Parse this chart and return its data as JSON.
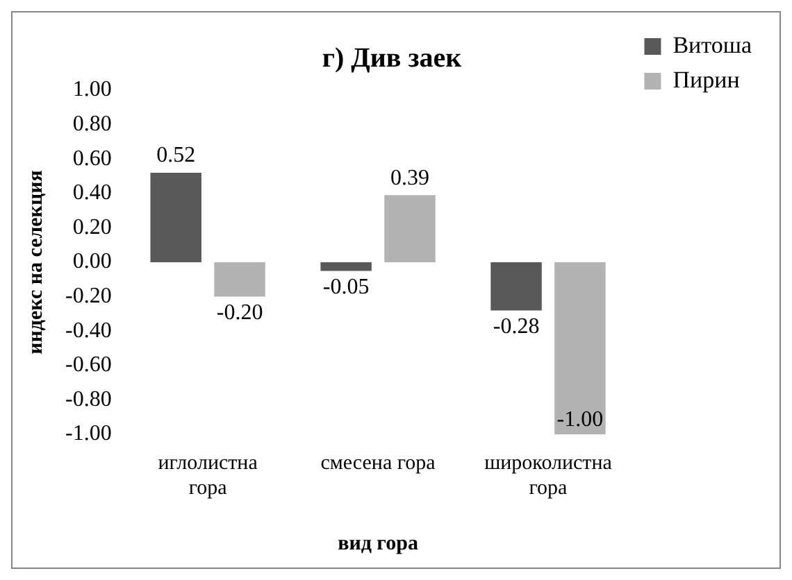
{
  "chart_data": {
    "type": "bar",
    "title": "г) Див заек",
    "xlabel": "вид гора",
    "ylabel": "индекс на селекция",
    "categories": [
      "иглолистна гора",
      "смесена гора",
      "широколистна гора"
    ],
    "series": [
      {
        "name": "Витоша",
        "color": "#595959",
        "values": [
          0.52,
          -0.05,
          -0.28
        ]
      },
      {
        "name": "Пирин",
        "color": "#b3b3b3",
        "values": [
          -0.2,
          0.39,
          -1.0
        ]
      }
    ],
    "value_labels": [
      [
        "0.52",
        "-0.05",
        "-0.28"
      ],
      [
        "-0.20",
        "0.39",
        "-1.00"
      ]
    ],
    "ylim": [
      -1,
      1
    ],
    "yticks": [
      {
        "value": -1,
        "label": "-1.00"
      },
      {
        "value": -0.8,
        "label": "-0.80"
      },
      {
        "value": -0.6,
        "label": "-0.60"
      },
      {
        "value": -0.4,
        "label": "-0.40"
      },
      {
        "value": -0.2,
        "label": "-0.20"
      },
      {
        "value": 0,
        "label": "0.00"
      },
      {
        "value": 0.2,
        "label": "0.20"
      },
      {
        "value": 0.4,
        "label": "0.40"
      },
      {
        "value": 0.6,
        "label": "0.60"
      },
      {
        "value": 0.8,
        "label": "0.80"
      },
      {
        "value": 1,
        "label": "1.00"
      }
    ],
    "grid": false,
    "legend": "top right"
  }
}
